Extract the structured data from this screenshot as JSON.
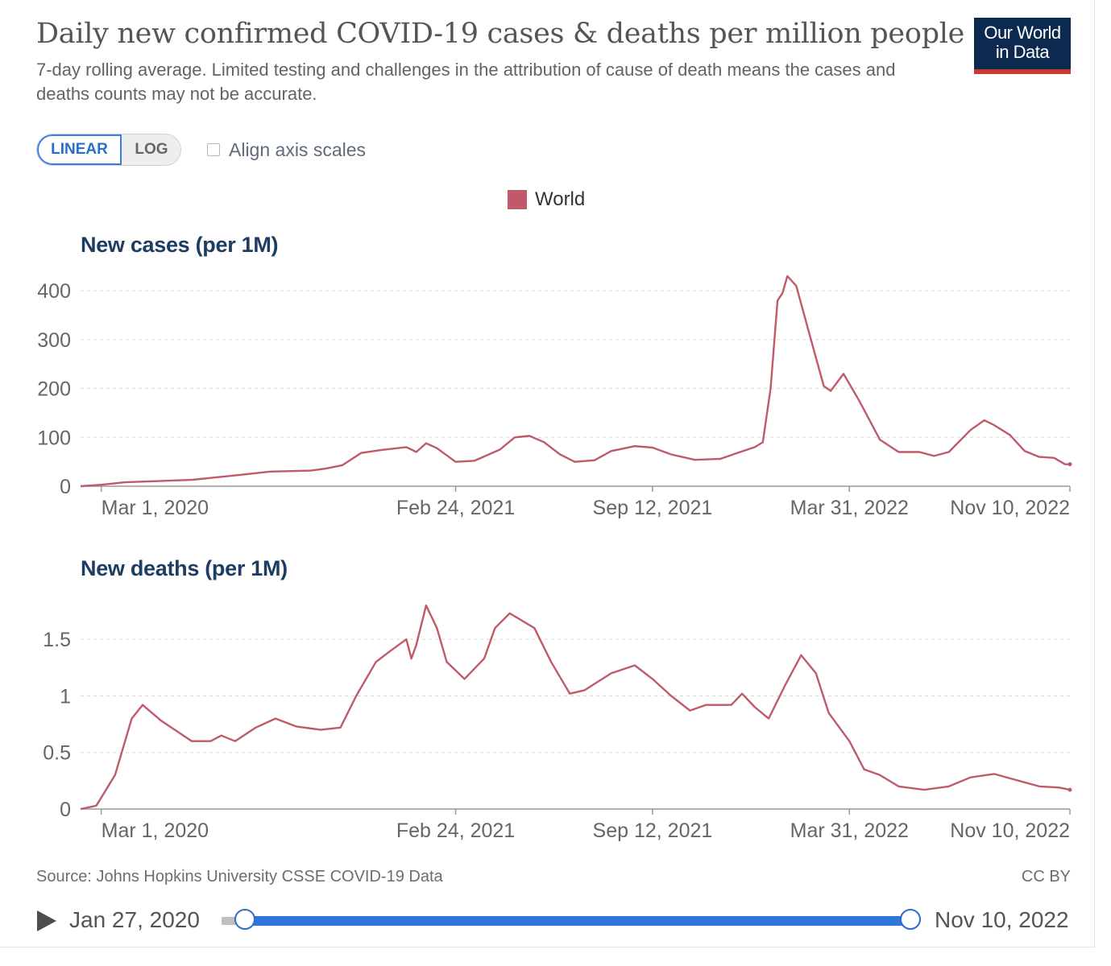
{
  "header": {
    "title": "Daily new confirmed COVID-19 cases & deaths per million people",
    "subtitle": "7-day rolling average. Limited testing and challenges in the attribution of cause of death means the cases and deaths counts may not be accurate.",
    "logo_line1": "Our World",
    "logo_line2": "in Data",
    "logo_colors": {
      "background": "#0c2a4f",
      "underline": "#c8392f"
    }
  },
  "controls": {
    "linear_label": "LINEAR",
    "log_label": "LOG",
    "selected_scale": "LINEAR",
    "align_label": "Align axis scales",
    "align_checked": false
  },
  "legend": {
    "label": "World",
    "color": "#c05a6a"
  },
  "footer": {
    "source": "Source: Johns Hopkins University CSSE COVID-19 Data",
    "license": "CC BY"
  },
  "timeline": {
    "start_date": "Jan 27, 2020",
    "end_date": "Nov 10, 2022",
    "accent_color": "#3077db"
  },
  "chart_data": [
    {
      "type": "line",
      "title": "New cases (per 1M)",
      "series_name": "World",
      "color": "#c05a6a",
      "ylim": [
        0,
        430
      ],
      "yticks": [
        0,
        100,
        200,
        300,
        400
      ],
      "ytick_labels": [
        "0",
        "100",
        "200",
        "300",
        "400"
      ],
      "xlim": [
        "2020-02-09",
        "2022-11-10"
      ],
      "xticks": [
        "2020-03-01",
        "2021-02-24",
        "2021-09-12",
        "2022-03-31",
        "2022-11-10"
      ],
      "xtick_labels": [
        "Mar 1, 2020",
        "Feb 24, 2021",
        "Sep 12, 2021",
        "Mar 31, 2022",
        "Nov 10, 2022"
      ],
      "grid": true,
      "points": [
        [
          "2020-02-09",
          0
        ],
        [
          "2020-03-01",
          3
        ],
        [
          "2020-03-25",
          8
        ],
        [
          "2020-04-20",
          10
        ],
        [
          "2020-06-01",
          13
        ],
        [
          "2020-07-15",
          22
        ],
        [
          "2020-08-20",
          30
        ],
        [
          "2020-09-30",
          32
        ],
        [
          "2020-10-15",
          36
        ],
        [
          "2020-11-01",
          43
        ],
        [
          "2020-11-20",
          68
        ],
        [
          "2020-12-10",
          74
        ],
        [
          "2021-01-05",
          80
        ],
        [
          "2021-01-15",
          70
        ],
        [
          "2021-01-25",
          88
        ],
        [
          "2021-02-05",
          78
        ],
        [
          "2021-02-24",
          50
        ],
        [
          "2021-03-15",
          52
        ],
        [
          "2021-04-10",
          75
        ],
        [
          "2021-04-25",
          100
        ],
        [
          "2021-05-10",
          103
        ],
        [
          "2021-05-25",
          90
        ],
        [
          "2021-06-10",
          65
        ],
        [
          "2021-06-25",
          50
        ],
        [
          "2021-07-15",
          53
        ],
        [
          "2021-08-01",
          72
        ],
        [
          "2021-08-25",
          82
        ],
        [
          "2021-09-12",
          79
        ],
        [
          "2021-10-01",
          65
        ],
        [
          "2021-10-25",
          54
        ],
        [
          "2021-11-20",
          56
        ],
        [
          "2021-12-10",
          70
        ],
        [
          "2021-12-25",
          80
        ],
        [
          "2022-01-02",
          90
        ],
        [
          "2022-01-10",
          200
        ],
        [
          "2022-01-17",
          380
        ],
        [
          "2022-01-22",
          395
        ],
        [
          "2022-01-27",
          430
        ],
        [
          "2022-02-05",
          410
        ],
        [
          "2022-02-20",
          300
        ],
        [
          "2022-03-05",
          205
        ],
        [
          "2022-03-12",
          195
        ],
        [
          "2022-03-25",
          230
        ],
        [
          "2022-04-10",
          175
        ],
        [
          "2022-05-01",
          95
        ],
        [
          "2022-05-20",
          70
        ],
        [
          "2022-06-10",
          70
        ],
        [
          "2022-06-25",
          62
        ],
        [
          "2022-07-10",
          70
        ],
        [
          "2022-08-01",
          115
        ],
        [
          "2022-08-15",
          135
        ],
        [
          "2022-08-25",
          125
        ],
        [
          "2022-09-10",
          105
        ],
        [
          "2022-09-25",
          72
        ],
        [
          "2022-10-10",
          60
        ],
        [
          "2022-10-25",
          58
        ],
        [
          "2022-11-05",
          45
        ],
        [
          "2022-11-10",
          45
        ]
      ]
    },
    {
      "type": "line",
      "title": "New deaths (per 1M)",
      "series_name": "World",
      "color": "#c05a6a",
      "ylim": [
        0,
        1.9
      ],
      "yticks": [
        0,
        0.5,
        1,
        1.5
      ],
      "ytick_labels": [
        "0",
        "0.5",
        "1",
        "1.5"
      ],
      "xlim": [
        "2020-02-09",
        "2022-11-10"
      ],
      "xticks": [
        "2020-03-01",
        "2021-02-24",
        "2021-09-12",
        "2022-03-31",
        "2022-11-10"
      ],
      "xtick_labels": [
        "Mar 1, 2020",
        "Feb 24, 2021",
        "Sep 12, 2021",
        "Mar 31, 2022",
        "Nov 10, 2022"
      ],
      "grid": true,
      "points": [
        [
          "2020-02-09",
          0
        ],
        [
          "2020-02-25",
          0.03
        ],
        [
          "2020-03-15",
          0.3
        ],
        [
          "2020-04-01",
          0.8
        ],
        [
          "2020-04-12",
          0.92
        ],
        [
          "2020-05-01",
          0.78
        ],
        [
          "2020-06-01",
          0.6
        ],
        [
          "2020-06-20",
          0.6
        ],
        [
          "2020-07-01",
          0.65
        ],
        [
          "2020-07-15",
          0.6
        ],
        [
          "2020-08-05",
          0.72
        ],
        [
          "2020-08-25",
          0.8
        ],
        [
          "2020-09-15",
          0.73
        ],
        [
          "2020-10-10",
          0.7
        ],
        [
          "2020-10-30",
          0.72
        ],
        [
          "2020-11-15",
          1.0
        ],
        [
          "2020-12-05",
          1.3
        ],
        [
          "2020-12-20",
          1.4
        ],
        [
          "2021-01-05",
          1.5
        ],
        [
          "2021-01-10",
          1.33
        ],
        [
          "2021-01-15",
          1.45
        ],
        [
          "2021-01-25",
          1.8
        ],
        [
          "2021-02-05",
          1.6
        ],
        [
          "2021-02-15",
          1.3
        ],
        [
          "2021-03-05",
          1.15
        ],
        [
          "2021-03-25",
          1.33
        ],
        [
          "2021-04-05",
          1.6
        ],
        [
          "2021-04-20",
          1.73
        ],
        [
          "2021-05-15",
          1.6
        ],
        [
          "2021-06-01",
          1.3
        ],
        [
          "2021-06-20",
          1.02
        ],
        [
          "2021-07-05",
          1.05
        ],
        [
          "2021-08-01",
          1.2
        ],
        [
          "2021-08-25",
          1.27
        ],
        [
          "2021-09-12",
          1.15
        ],
        [
          "2021-10-01",
          1.0
        ],
        [
          "2021-10-20",
          0.87
        ],
        [
          "2021-11-05",
          0.92
        ],
        [
          "2021-12-01",
          0.92
        ],
        [
          "2021-12-12",
          1.02
        ],
        [
          "2021-12-25",
          0.9
        ],
        [
          "2022-01-08",
          0.8
        ],
        [
          "2022-01-25",
          1.1
        ],
        [
          "2022-02-10",
          1.36
        ],
        [
          "2022-02-25",
          1.2
        ],
        [
          "2022-03-10",
          0.85
        ],
        [
          "2022-03-31",
          0.6
        ],
        [
          "2022-04-15",
          0.35
        ],
        [
          "2022-05-01",
          0.3
        ],
        [
          "2022-05-20",
          0.2
        ],
        [
          "2022-06-15",
          0.17
        ],
        [
          "2022-07-10",
          0.2
        ],
        [
          "2022-08-01",
          0.28
        ],
        [
          "2022-08-25",
          0.31
        ],
        [
          "2022-09-15",
          0.26
        ],
        [
          "2022-10-10",
          0.2
        ],
        [
          "2022-10-30",
          0.19
        ],
        [
          "2022-11-10",
          0.17
        ]
      ]
    }
  ]
}
